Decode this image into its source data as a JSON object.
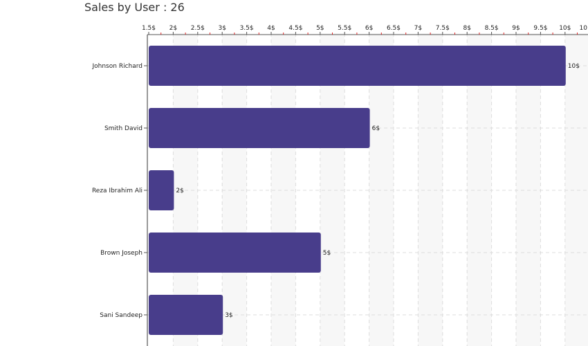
{
  "chart_data": {
    "type": "bar",
    "orientation": "horizontal",
    "title": "Sales by User : 26",
    "xlabel": "",
    "ylabel": "",
    "xlim": [
      1.5,
      10
    ],
    "x_tick_labels": [
      "1.5$",
      "2$",
      "2.5$",
      "3$",
      "3.5$",
      "4$",
      "4.5$",
      "5$",
      "5.5$",
      "6$",
      "6.5$",
      "7$",
      "7.5$",
      "8$",
      "8.5$",
      "9$",
      "9.5$",
      "10$",
      "10"
    ],
    "categories": [
      "Johnson Richard",
      "Smith David",
      "Reza Ibrahim Ali",
      "Brown Joseph",
      "Sani Sandeep"
    ],
    "values": [
      10,
      6,
      2,
      5,
      3
    ],
    "value_labels": [
      "10$",
      "6$",
      "2$",
      "5$",
      "3$"
    ],
    "grid": true,
    "legend": "none",
    "colors": {
      "bar": "#483d8b",
      "axis": "#555555",
      "grid": "#dddddd",
      "band": "#f7f7f7",
      "minor_tick": "#dd2222"
    }
  }
}
